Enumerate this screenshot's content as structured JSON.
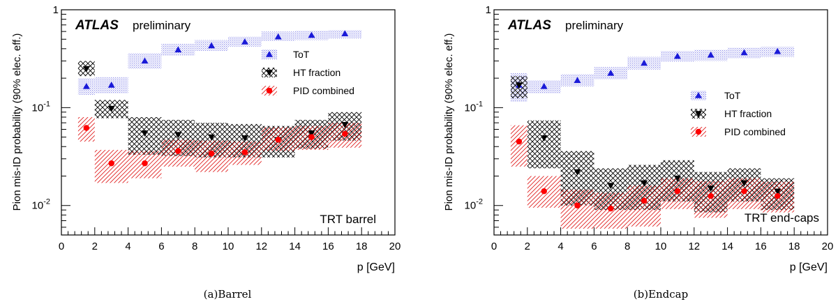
{
  "chart_data": [
    {
      "type": "scatter",
      "subplot": "(a)",
      "caption": "(a)Barrel",
      "xlabel": "p [GeV]",
      "ylabel": "Pion mis-ID probability (90% elec. eff.)",
      "xlim": [
        0,
        20
      ],
      "ylim": [
        0.005,
        1
      ],
      "yscale": "log",
      "x_ticks": [
        "0",
        "2",
        "4",
        "6",
        "8",
        "10",
        "12",
        "14",
        "16",
        "18",
        "20"
      ],
      "y_ticks": [
        {
          "value": 0.01,
          "label": "10",
          "exp": "-2"
        },
        {
          "value": 0.1,
          "label": "10",
          "exp": "-1"
        },
        {
          "value": 1,
          "label": "1",
          "exp": ""
        }
      ],
      "experiment": "ATLAS",
      "status": "preliminary",
      "region_label": "TRT barrel",
      "legend_position": "top-right",
      "series": [
        {
          "name": "ToT",
          "marker": "triangle-up",
          "color": "#1a1ad8",
          "band_color": "#8a8ae6",
          "points": [
            {
              "x": 1.5,
              "xlo": 1,
              "xhi": 2,
              "y": 0.165,
              "lo": 0.135,
              "hi": 0.2
            },
            {
              "x": 3,
              "xlo": 2,
              "xhi": 4,
              "y": 0.17,
              "lo": 0.14,
              "hi": 0.205
            },
            {
              "x": 5,
              "xlo": 4,
              "xhi": 6,
              "y": 0.3,
              "lo": 0.25,
              "hi": 0.36
            },
            {
              "x": 7,
              "xlo": 6,
              "xhi": 8,
              "y": 0.39,
              "lo": 0.34,
              "hi": 0.45
            },
            {
              "x": 9,
              "xlo": 8,
              "xhi": 10,
              "y": 0.43,
              "lo": 0.38,
              "hi": 0.49
            },
            {
              "x": 11,
              "xlo": 10,
              "xhi": 12,
              "y": 0.47,
              "lo": 0.42,
              "hi": 0.53
            },
            {
              "x": 13,
              "xlo": 12,
              "xhi": 14,
              "y": 0.53,
              "lo": 0.48,
              "hi": 0.6
            },
            {
              "x": 15,
              "xlo": 14,
              "xhi": 16,
              "y": 0.55,
              "lo": 0.49,
              "hi": 0.61
            },
            {
              "x": 17,
              "xlo": 16,
              "xhi": 18,
              "y": 0.57,
              "lo": 0.51,
              "hi": 0.62
            }
          ]
        },
        {
          "name": "HT fraction",
          "marker": "triangle-down",
          "color": "#000000",
          "band_color": "#000000",
          "points": [
            {
              "x": 1.5,
              "xlo": 1,
              "xhi": 2,
              "y": 0.25,
              "lo": 0.21,
              "hi": 0.3
            },
            {
              "x": 3,
              "xlo": 2,
              "xhi": 4,
              "y": 0.098,
              "lo": 0.078,
              "hi": 0.12
            },
            {
              "x": 5,
              "xlo": 4,
              "xhi": 6,
              "y": 0.055,
              "lo": 0.033,
              "hi": 0.08
            },
            {
              "x": 7,
              "xlo": 6,
              "xhi": 8,
              "y": 0.053,
              "lo": 0.032,
              "hi": 0.075
            },
            {
              "x": 9,
              "xlo": 8,
              "xhi": 10,
              "y": 0.05,
              "lo": 0.031,
              "hi": 0.07
            },
            {
              "x": 11,
              "xlo": 10,
              "xhi": 12,
              "y": 0.049,
              "lo": 0.031,
              "hi": 0.068
            },
            {
              "x": 13,
              "xlo": 12,
              "xhi": 14,
              "y": 0.047,
              "lo": 0.031,
              "hi": 0.065
            },
            {
              "x": 15,
              "xlo": 14,
              "xhi": 16,
              "y": 0.055,
              "lo": 0.038,
              "hi": 0.075
            },
            {
              "x": 17,
              "xlo": 16,
              "xhi": 18,
              "y": 0.067,
              "lo": 0.046,
              "hi": 0.09
            }
          ]
        },
        {
          "name": "PID combined",
          "marker": "circle",
          "color": "#ff0000",
          "band_color": "#e23030",
          "points": [
            {
              "x": 1.5,
              "xlo": 1,
              "xhi": 2,
              "y": 0.062,
              "lo": 0.045,
              "hi": 0.08
            },
            {
              "x": 3,
              "xlo": 2,
              "xhi": 4,
              "y": 0.027,
              "lo": 0.017,
              "hi": 0.037
            },
            {
              "x": 5,
              "xlo": 4,
              "xhi": 6,
              "y": 0.027,
              "lo": 0.019,
              "hi": 0.036
            },
            {
              "x": 7,
              "xlo": 6,
              "xhi": 8,
              "y": 0.036,
              "lo": 0.025,
              "hi": 0.047
            },
            {
              "x": 9,
              "xlo": 8,
              "xhi": 10,
              "y": 0.034,
              "lo": 0.022,
              "hi": 0.046
            },
            {
              "x": 11,
              "xlo": 10,
              "xhi": 12,
              "y": 0.035,
              "lo": 0.026,
              "hi": 0.045
            },
            {
              "x": 13,
              "xlo": 12,
              "xhi": 14,
              "y": 0.047,
              "lo": 0.036,
              "hi": 0.063
            },
            {
              "x": 15,
              "xlo": 14,
              "xhi": 16,
              "y": 0.05,
              "lo": 0.037,
              "hi": 0.065
            },
            {
              "x": 17,
              "xlo": 16,
              "xhi": 18,
              "y": 0.054,
              "lo": 0.039,
              "hi": 0.07
            }
          ]
        }
      ]
    },
    {
      "type": "scatter",
      "subplot": "(b)",
      "caption": "(b)Endcap",
      "xlabel": "p [GeV]",
      "ylabel": "Pion mis-ID probability (90% elec. eff.)",
      "xlim": [
        0,
        20
      ],
      "ylim": [
        0.005,
        1
      ],
      "yscale": "log",
      "x_ticks": [
        "0",
        "2",
        "4",
        "6",
        "8",
        "10",
        "12",
        "14",
        "16",
        "18",
        "20"
      ],
      "y_ticks": [
        {
          "value": 0.01,
          "label": "10",
          "exp": "-2"
        },
        {
          "value": 0.1,
          "label": "10",
          "exp": "-1"
        },
        {
          "value": 1,
          "label": "1",
          "exp": ""
        }
      ],
      "experiment": "ATLAS",
      "status": "preliminary",
      "region_label": "TRT end-caps",
      "legend_position": "right",
      "series": [
        {
          "name": "ToT",
          "marker": "triangle-up",
          "color": "#1a1ad8",
          "band_color": "#8a8ae6",
          "points": [
            {
              "x": 1.5,
              "xlo": 1,
              "xhi": 2,
              "y": 0.17,
              "lo": 0.115,
              "hi": 0.225
            },
            {
              "x": 3,
              "xlo": 2,
              "xhi": 4,
              "y": 0.165,
              "lo": 0.14,
              "hi": 0.19
            },
            {
              "x": 5,
              "xlo": 4,
              "xhi": 6,
              "y": 0.19,
              "lo": 0.165,
              "hi": 0.22
            },
            {
              "x": 7,
              "xlo": 6,
              "xhi": 8,
              "y": 0.225,
              "lo": 0.195,
              "hi": 0.26
            },
            {
              "x": 9,
              "xlo": 8,
              "xhi": 10,
              "y": 0.285,
              "lo": 0.245,
              "hi": 0.33
            },
            {
              "x": 11,
              "xlo": 10,
              "xhi": 12,
              "y": 0.335,
              "lo": 0.295,
              "hi": 0.38
            },
            {
              "x": 13,
              "xlo": 12,
              "xhi": 14,
              "y": 0.345,
              "lo": 0.3,
              "hi": 0.39
            },
            {
              "x": 15,
              "xlo": 14,
              "xhi": 16,
              "y": 0.365,
              "lo": 0.32,
              "hi": 0.41
            },
            {
              "x": 17,
              "xlo": 16,
              "xhi": 18,
              "y": 0.375,
              "lo": 0.33,
              "hi": 0.42
            }
          ]
        },
        {
          "name": "HT fraction",
          "marker": "triangle-down",
          "color": "#000000",
          "band_color": "#000000",
          "points": [
            {
              "x": 1.5,
              "xlo": 1,
              "xhi": 2,
              "y": 0.17,
              "lo": 0.125,
              "hi": 0.21
            },
            {
              "x": 3,
              "xlo": 2,
              "xhi": 4,
              "y": 0.049,
              "lo": 0.024,
              "hi": 0.074
            },
            {
              "x": 5,
              "xlo": 4,
              "xhi": 6,
              "y": 0.022,
              "lo": 0.01,
              "hi": 0.036
            },
            {
              "x": 7,
              "xlo": 6,
              "xhi": 8,
              "y": 0.016,
              "lo": 0.009,
              "hi": 0.024
            },
            {
              "x": 9,
              "xlo": 8,
              "xhi": 10,
              "y": 0.017,
              "lo": 0.009,
              "hi": 0.026
            },
            {
              "x": 11,
              "xlo": 10,
              "xhi": 12,
              "y": 0.019,
              "lo": 0.011,
              "hi": 0.029
            },
            {
              "x": 13,
              "xlo": 12,
              "xhi": 14,
              "y": 0.015,
              "lo": 0.0085,
              "hi": 0.022
            },
            {
              "x": 15,
              "xlo": 14,
              "xhi": 16,
              "y": 0.017,
              "lo": 0.011,
              "hi": 0.024
            },
            {
              "x": 17,
              "xlo": 16,
              "xhi": 18,
              "y": 0.014,
              "lo": 0.009,
              "hi": 0.019
            }
          ]
        },
        {
          "name": "PID combined",
          "marker": "circle",
          "color": "#ff0000",
          "band_color": "#e23030",
          "points": [
            {
              "x": 1.5,
              "xlo": 1,
              "xhi": 2,
              "y": 0.045,
              "lo": 0.025,
              "hi": 0.066
            },
            {
              "x": 3,
              "xlo": 2,
              "xhi": 4,
              "y": 0.014,
              "lo": 0.0095,
              "hi": 0.02
            },
            {
              "x": 5,
              "xlo": 4,
              "xhi": 6,
              "y": 0.01,
              "lo": 0.0058,
              "hi": 0.0145
            },
            {
              "x": 7,
              "xlo": 6,
              "xhi": 8,
              "y": 0.0093,
              "lo": 0.0058,
              "hi": 0.0135
            },
            {
              "x": 9,
              "xlo": 8,
              "xhi": 10,
              "y": 0.0112,
              "lo": 0.0061,
              "hi": 0.016
            },
            {
              "x": 11,
              "xlo": 10,
              "xhi": 12,
              "y": 0.014,
              "lo": 0.0092,
              "hi": 0.019
            },
            {
              "x": 13,
              "xlo": 12,
              "xhi": 14,
              "y": 0.0125,
              "lo": 0.0075,
              "hi": 0.0178
            },
            {
              "x": 15,
              "xlo": 14,
              "xhi": 16,
              "y": 0.014,
              "lo": 0.0092,
              "hi": 0.019
            },
            {
              "x": 17,
              "xlo": 16,
              "xhi": 18,
              "y": 0.0125,
              "lo": 0.0085,
              "hi": 0.0175
            }
          ]
        }
      ]
    }
  ]
}
